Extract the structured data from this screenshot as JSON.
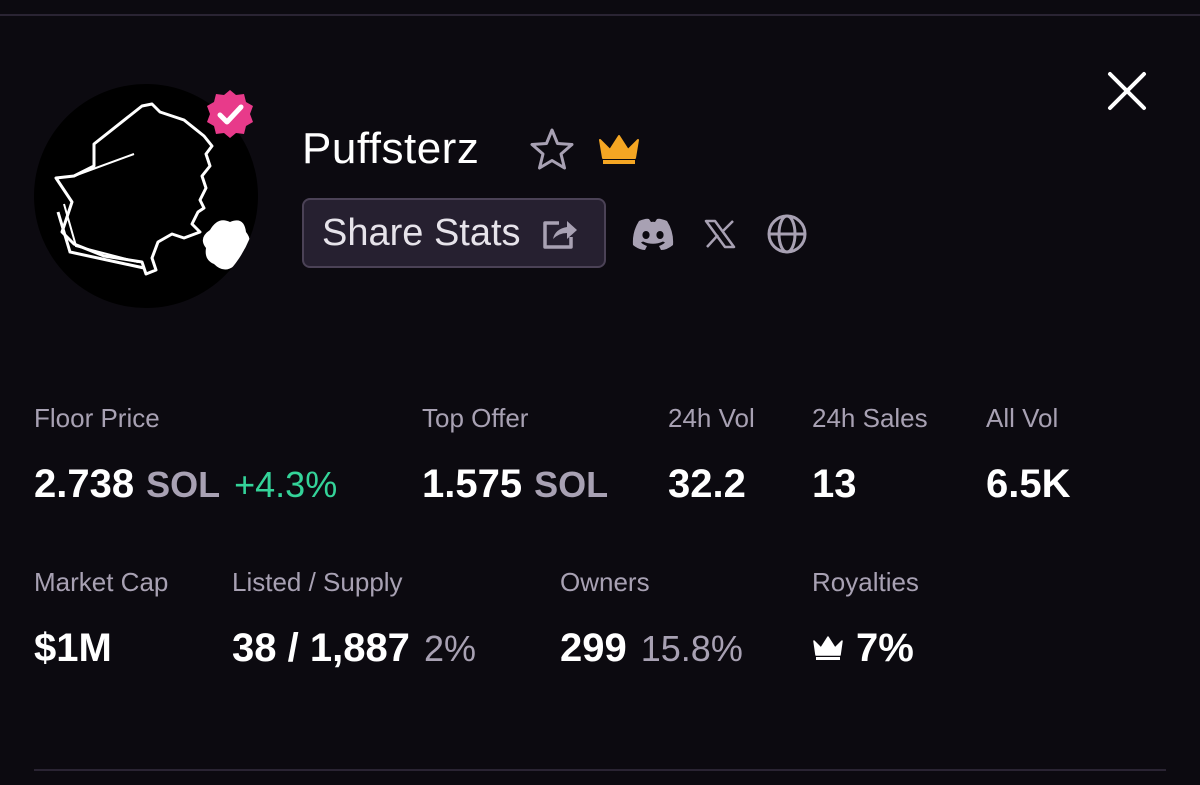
{
  "collection": {
    "name": "Puffsterz",
    "avatar_icon": "smoking-silhouette-avatar",
    "verified_color": "#e83a8a",
    "crown_color": "#f5a623"
  },
  "actions": {
    "share_label": "Share Stats",
    "social": [
      "discord-icon",
      "x-icon",
      "globe-icon"
    ]
  },
  "stats": {
    "floor_price": {
      "label": "Floor Price",
      "value": "2.738",
      "unit": "SOL",
      "change": "+4.3%"
    },
    "top_offer": {
      "label": "Top Offer",
      "value": "1.575",
      "unit": "SOL"
    },
    "vol_24h": {
      "label": "24h Vol",
      "value": "32.2"
    },
    "sales_24h": {
      "label": "24h Sales",
      "value": "13"
    },
    "all_vol": {
      "label": "All Vol",
      "value": "6.5K"
    },
    "market_cap": {
      "label": "Market Cap",
      "value": "$1M"
    },
    "listed_supply": {
      "label": "Listed / Supply",
      "value": "38 / 1,887",
      "percent": "2%"
    },
    "owners": {
      "label": "Owners",
      "value": "299",
      "percent": "15.8%"
    },
    "royalties": {
      "label": "Royalties",
      "value": "7%"
    }
  },
  "colors": {
    "background": "#0c0a10",
    "positive": "#34d399",
    "muted": "#a8a1b3"
  }
}
